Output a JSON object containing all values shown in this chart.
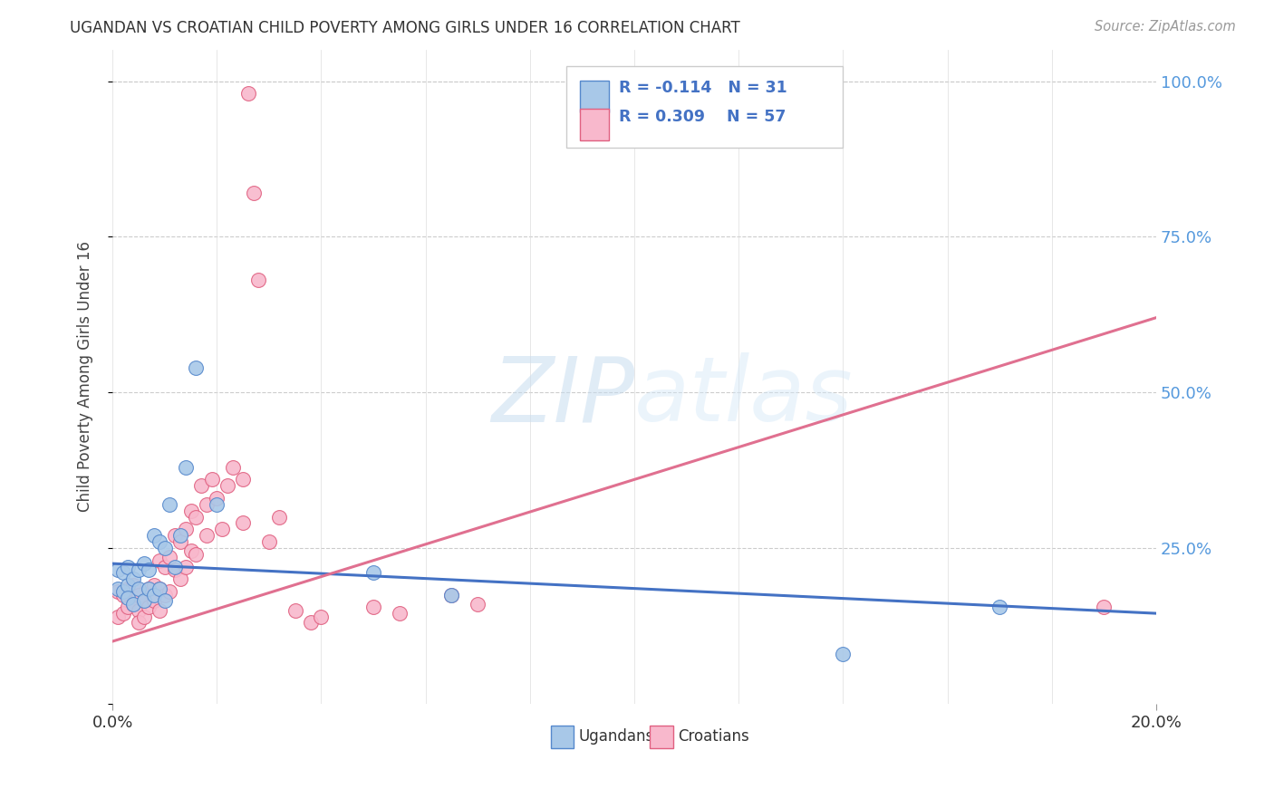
{
  "title": "UGANDAN VS CROATIAN CHILD POVERTY AMONG GIRLS UNDER 16 CORRELATION CHART",
  "source": "Source: ZipAtlas.com",
  "ylabel": "Child Poverty Among Girls Under 16",
  "ugandan_color": "#a8c8e8",
  "ugandan_edge_color": "#5588cc",
  "croatian_color": "#f8b8cc",
  "croatian_edge_color": "#e06080",
  "ugandan_line_color": "#4472c4",
  "croatian_line_color": "#e07090",
  "background_color": "#ffffff",
  "grid_color": "#cccccc",
  "right_label_color": "#5599dd",
  "watermark_color": "#d8e8f4",
  "ugandan_x": [
    0.001,
    0.001,
    0.002,
    0.002,
    0.003,
    0.003,
    0.003,
    0.004,
    0.004,
    0.005,
    0.005,
    0.006,
    0.006,
    0.007,
    0.007,
    0.008,
    0.008,
    0.009,
    0.009,
    0.01,
    0.01,
    0.011,
    0.012,
    0.013,
    0.014,
    0.016,
    0.02,
    0.05,
    0.065,
    0.14,
    0.17
  ],
  "ugandan_y": [
    0.215,
    0.185,
    0.21,
    0.18,
    0.22,
    0.19,
    0.17,
    0.2,
    0.16,
    0.215,
    0.185,
    0.225,
    0.165,
    0.215,
    0.185,
    0.27,
    0.175,
    0.26,
    0.185,
    0.25,
    0.165,
    0.32,
    0.22,
    0.27,
    0.38,
    0.54,
    0.32,
    0.21,
    0.175,
    0.08,
    0.155
  ],
  "croatian_x": [
    0.001,
    0.001,
    0.002,
    0.002,
    0.003,
    0.003,
    0.004,
    0.004,
    0.005,
    0.005,
    0.005,
    0.006,
    0.006,
    0.007,
    0.007,
    0.008,
    0.008,
    0.009,
    0.009,
    0.009,
    0.01,
    0.01,
    0.011,
    0.011,
    0.012,
    0.012,
    0.013,
    0.013,
    0.014,
    0.014,
    0.015,
    0.015,
    0.016,
    0.016,
    0.017,
    0.018,
    0.018,
    0.019,
    0.02,
    0.021,
    0.022,
    0.023,
    0.025,
    0.025,
    0.026,
    0.027,
    0.028,
    0.03,
    0.032,
    0.035,
    0.038,
    0.04,
    0.05,
    0.055,
    0.065,
    0.07,
    0.19
  ],
  "croatian_y": [
    0.18,
    0.14,
    0.175,
    0.145,
    0.185,
    0.155,
    0.19,
    0.16,
    0.175,
    0.15,
    0.13,
    0.165,
    0.14,
    0.185,
    0.155,
    0.19,
    0.165,
    0.23,
    0.185,
    0.15,
    0.22,
    0.175,
    0.235,
    0.18,
    0.27,
    0.215,
    0.26,
    0.2,
    0.28,
    0.22,
    0.31,
    0.245,
    0.3,
    0.24,
    0.35,
    0.32,
    0.27,
    0.36,
    0.33,
    0.28,
    0.35,
    0.38,
    0.36,
    0.29,
    0.98,
    0.82,
    0.68,
    0.26,
    0.3,
    0.15,
    0.13,
    0.14,
    0.155,
    0.145,
    0.175,
    0.16,
    0.155
  ],
  "ug_trend_x0": 0.0,
  "ug_trend_x1": 0.2,
  "ug_trend_y0": 0.225,
  "ug_trend_y1": 0.145,
  "cr_trend_x0": 0.0,
  "cr_trend_x1": 0.2,
  "cr_trend_y0": 0.1,
  "cr_trend_y1": 0.62,
  "xlim": [
    0.0,
    0.2
  ],
  "ylim": [
    0.0,
    1.05
  ],
  "yticks": [
    0.0,
    0.25,
    0.5,
    0.75,
    1.0
  ],
  "ytick_labels_right": [
    "",
    "25.0%",
    "50.0%",
    "75.0%",
    "100.0%"
  ],
  "xtick_positions": [
    0.0,
    0.2
  ],
  "xtick_labels": [
    "0.0%",
    "20.0%"
  ]
}
